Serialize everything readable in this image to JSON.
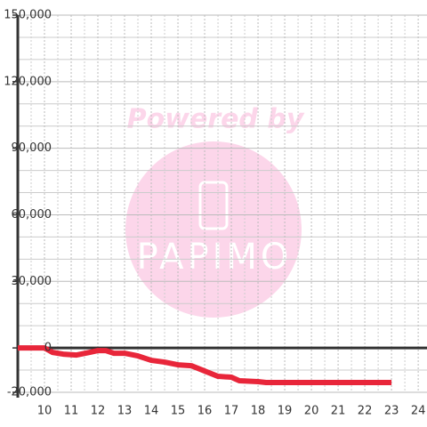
{
  "chart_data": {
    "type": "line",
    "watermark": {
      "text": "Powered by",
      "logo_text": "PAPIMO"
    },
    "x": [
      9,
      10,
      10.3,
      10.7,
      11.2,
      11.7,
      12,
      12.3,
      12.6,
      13,
      13.5,
      14,
      14.5,
      15,
      15.5,
      16,
      16.5,
      17,
      17.3,
      18,
      18.3,
      23
    ],
    "series": [
      {
        "color": "#e8263a",
        "values": [
          0,
          0,
          -2000,
          -2800,
          -3200,
          -2000,
          -1200,
          -1200,
          -2400,
          -2400,
          -3600,
          -5600,
          -6400,
          -7600,
          -8000,
          -10400,
          -12800,
          -13200,
          -14800,
          -15200,
          -15600,
          -15600
        ]
      }
    ],
    "xlim": [
      9,
      24.33
    ],
    "xticks": [
      10,
      11,
      12,
      13,
      14,
      15,
      16,
      17,
      18,
      19,
      20,
      21,
      22,
      23,
      24
    ],
    "x_minor_ticks": [
      9.5,
      10.5,
      11.5,
      12.5,
      13.5,
      14.5,
      15.5,
      16.5,
      17.5,
      18.5,
      19.5,
      20.5,
      21.5,
      22.5,
      23.5
    ],
    "ylim": [
      -20000,
      150000
    ],
    "yticks": [
      {
        "value": -20000,
        "label": "-20,000"
      },
      0,
      {
        "value": 30000,
        "label": "30,000"
      },
      {
        "value": 60000,
        "label": "60,000"
      },
      {
        "value": 90000,
        "label": "90,000"
      },
      {
        "value": 120000,
        "label": "120,000"
      },
      {
        "value": 150000,
        "label": "150,000"
      }
    ],
    "y_minor_ticks": [
      -10000,
      10000,
      20000,
      40000,
      50000,
      70000,
      80000,
      100000,
      110000,
      130000,
      140000
    ],
    "grid": true
  }
}
